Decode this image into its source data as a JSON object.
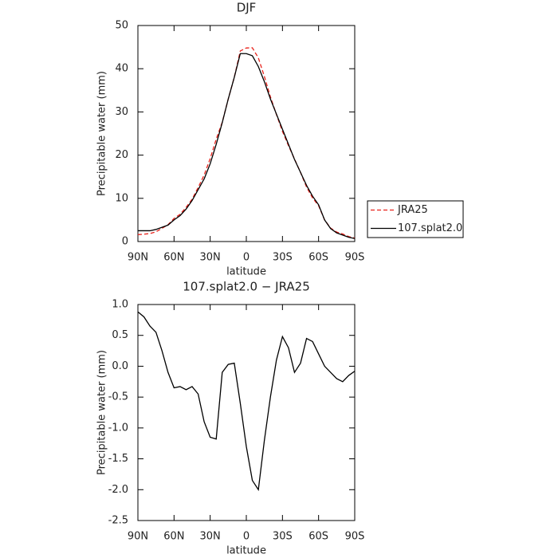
{
  "chart_data": [
    {
      "type": "line",
      "title": "DJF",
      "x_label": "latitude",
      "y_label": "Precipitable water (mm)",
      "x": [
        90,
        85,
        80,
        75,
        70,
        65,
        60,
        55,
        50,
        45,
        40,
        35,
        30,
        25,
        20,
        15,
        10,
        5,
        0,
        -5,
        -10,
        -15,
        -20,
        -25,
        -30,
        -35,
        -40,
        -45,
        -50,
        -55,
        -60,
        -65,
        -70,
        -75,
        -80,
        -85,
        -90
      ],
      "series": [
        {
          "name": "JRA25",
          "color": "#e8221b",
          "linestyle": "dashed",
          "values": [
            1.6,
            1.7,
            1.85,
            2.25,
            3.05,
            3.9,
            5.35,
            6.3,
            7.9,
            9.8,
            12.5,
            15.4,
            19.2,
            23.7,
            27.6,
            33,
            38,
            44.1,
            44.8,
            44.85,
            42.5,
            38.2,
            33.5,
            29.4,
            25.5,
            22.2,
            19.1,
            16,
            12.6,
            10.1,
            8.3,
            5,
            3.1,
            2.2,
            1.75,
            1.15,
            0.8
          ]
        },
        {
          "name": "107.splat2.0",
          "color": "#000000",
          "linestyle": "solid",
          "values": [
            2.5,
            2.5,
            2.5,
            2.8,
            3.3,
            3.8,
            5,
            6,
            7.5,
            9.5,
            12,
            14.5,
            18,
            22.5,
            27.5,
            33,
            38,
            43.5,
            43.5,
            43,
            40.5,
            37,
            33,
            29.5,
            26,
            22.5,
            19,
            16,
            13,
            10.5,
            8.5,
            5,
            3,
            2,
            1.5,
            1,
            0.7
          ]
        }
      ],
      "xlim": [
        90,
        -90
      ],
      "xticks": [
        {
          "value": 90,
          "label": "90N"
        },
        {
          "value": 60,
          "label": "60N"
        },
        {
          "value": 30,
          "label": "30N"
        },
        0,
        {
          "value": -30,
          "label": "30S"
        },
        {
          "value": -60,
          "label": "60S"
        },
        {
          "value": -90,
          "label": "90S"
        }
      ],
      "ylim": [
        0,
        50
      ],
      "yticks": [
        0,
        10,
        20,
        30,
        40,
        50
      ],
      "legend": "right"
    },
    {
      "type": "line",
      "title": "107.splat2.0 − JRA25",
      "x_label": "latitude",
      "y_label": "Precipitable water (mm)",
      "x": [
        90,
        85,
        80,
        75,
        70,
        65,
        60,
        55,
        50,
        45,
        40,
        35,
        30,
        25,
        20,
        15,
        10,
        5,
        0,
        -5,
        -10,
        -15,
        -20,
        -25,
        -30,
        -35,
        -40,
        -45,
        -50,
        -55,
        -60,
        -65,
        -70,
        -75,
        -80,
        -85,
        -90
      ],
      "series": [
        {
          "color": "#000000",
          "linestyle": "solid",
          "values": [
            0.88,
            0.8,
            0.65,
            0.55,
            0.25,
            -0.1,
            -0.35,
            -0.33,
            -0.38,
            -0.33,
            -0.45,
            -0.9,
            -1.15,
            -1.18,
            -0.1,
            0.03,
            0.05,
            -0.6,
            -1.3,
            -1.85,
            -2.0,
            -1.2,
            -0.5,
            0.1,
            0.48,
            0.3,
            -0.1,
            0.05,
            0.45,
            0.4,
            0.2,
            0.0,
            -0.1,
            -0.2,
            -0.25,
            -0.15,
            -0.08
          ]
        }
      ],
      "xlim": [
        90,
        -90
      ],
      "xticks": [
        {
          "value": 90,
          "label": "90N"
        },
        {
          "value": 60,
          "label": "60N"
        },
        {
          "value": 30,
          "label": "30N"
        },
        0,
        {
          "value": -30,
          "label": "30S"
        },
        {
          "value": -60,
          "label": "60S"
        },
        {
          "value": -90,
          "label": "90S"
        }
      ],
      "ylim": [
        -2.5,
        1.0
      ],
      "yticks": [
        {
          "value": -2.5,
          "label": "-2.5"
        },
        {
          "value": -2.0,
          "label": "-2.0"
        },
        {
          "value": -1.5,
          "label": "-1.5"
        },
        {
          "value": -1.0,
          "label": "-1.0"
        },
        {
          "value": -0.5,
          "label": "-0.5"
        },
        {
          "value": 0.0,
          "label": "0.0"
        },
        {
          "value": 0.5,
          "label": "0.5"
        },
        {
          "value": 1.0,
          "label": "1.0"
        }
      ]
    }
  ]
}
